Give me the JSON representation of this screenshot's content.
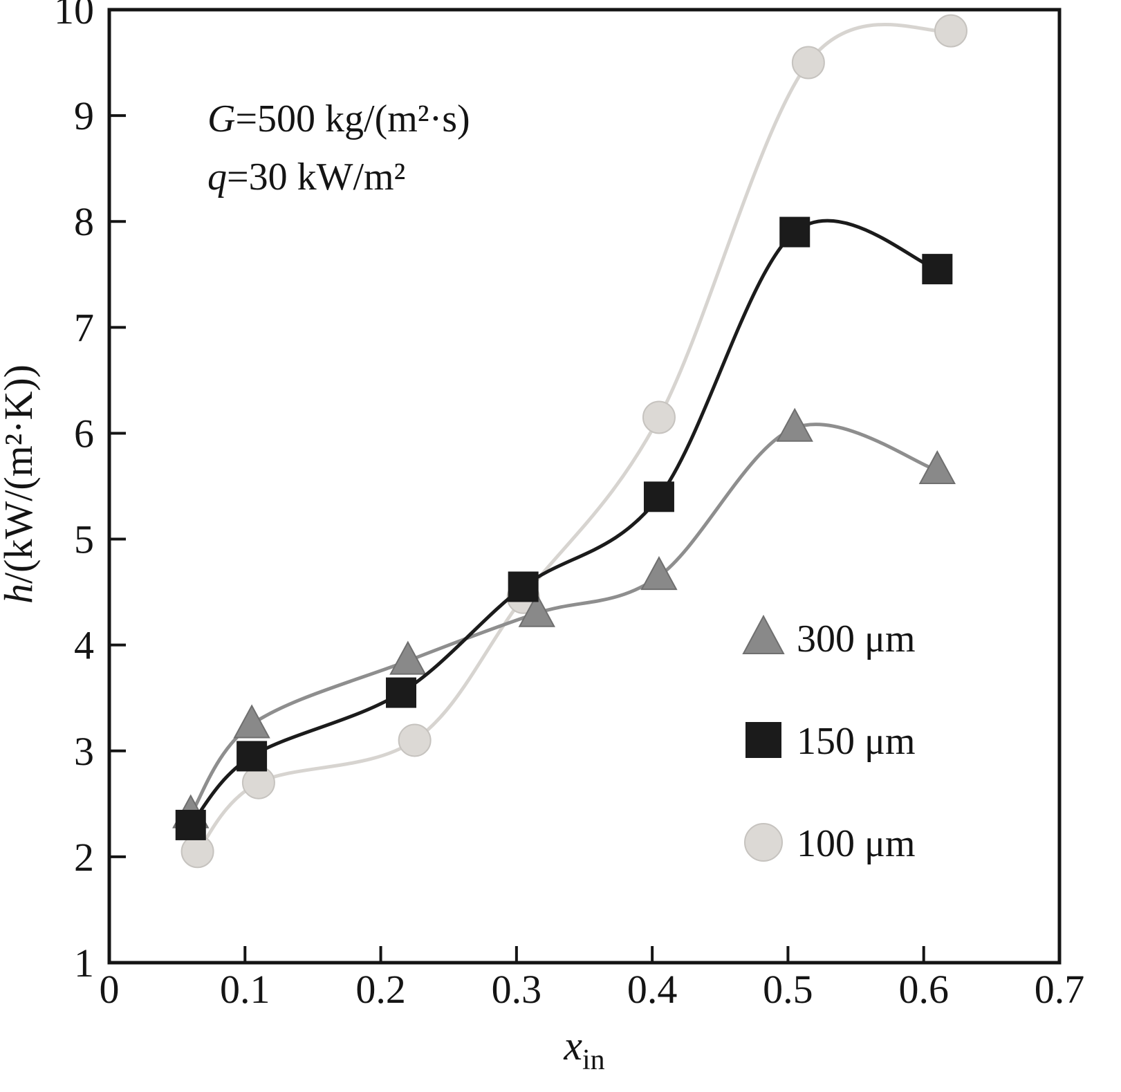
{
  "chart_data": {
    "type": "line",
    "subtype": "scatter-line-spline",
    "title": "",
    "xlabel": {
      "var": "x",
      "sub": "in"
    },
    "ylabel": {
      "var": "h",
      "rest": "/(kW/(m²·K))"
    },
    "xlim": [
      0,
      0.7
    ],
    "ylim": [
      1,
      10
    ],
    "xticks": [
      "0",
      "0.1",
      "0.2",
      "0.3",
      "0.4",
      "0.5",
      "0.6",
      "0.7"
    ],
    "yticks": [
      "1",
      "2",
      "3",
      "4",
      "5",
      "6",
      "7",
      "8",
      "9",
      "10"
    ],
    "grid": false,
    "frame": true,
    "annotations": [
      {
        "var": "G",
        "rest": "=500 kg/(m²·s)"
      },
      {
        "var": "q",
        "rest": "=30 kW/m²"
      }
    ],
    "colors": {
      "axis": "#141414",
      "series_300um": "#8b8b8b",
      "series_150um": "#1b1b1b",
      "series_100um_line": "#d7d4d0",
      "series_100um_fill": "#dcd9d5",
      "series_100um_edge": "#c6c3bf"
    },
    "series": [
      {
        "name": "100 μm",
        "marker": "circle",
        "line_color": "#d7d4d0",
        "fill": "#dcd9d5",
        "edge": "#c6c3bf",
        "x": [
          0.065,
          0.11,
          0.225,
          0.305,
          0.405,
          0.515,
          0.62
        ],
        "y": [
          2.05,
          2.7,
          3.1,
          4.45,
          6.15,
          9.5,
          9.8
        ]
      },
      {
        "name": "300 μm",
        "marker": "triangle",
        "line_color": "#8e8e8e",
        "fill": "#898989",
        "edge": "#6f6f6f",
        "x": [
          0.06,
          0.105,
          0.22,
          0.315,
          0.405,
          0.505,
          0.61
        ],
        "y": [
          2.4,
          3.25,
          3.85,
          4.3,
          4.65,
          6.05,
          5.65
        ]
      },
      {
        "name": "150 μm",
        "marker": "square",
        "line_color": "#1b1b1b",
        "fill": "#1b1b1b",
        "edge": "#1b1b1b",
        "x": [
          0.06,
          0.105,
          0.215,
          0.305,
          0.405,
          0.505,
          0.61
        ],
        "y": [
          2.3,
          2.95,
          3.55,
          4.55,
          5.4,
          7.9,
          7.55
        ]
      }
    ],
    "legend": {
      "position": "lower right",
      "entries": [
        {
          "label": "300 μm",
          "marker": "triangle"
        },
        {
          "label": "150 μm",
          "marker": "square"
        },
        {
          "label": "100 μm",
          "marker": "circle"
        }
      ]
    }
  }
}
